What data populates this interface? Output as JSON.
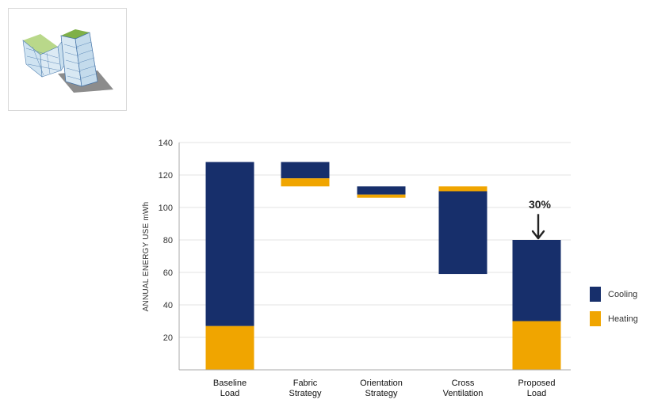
{
  "chart_data": {
    "type": "bar",
    "subtype": "stacked-waterfall",
    "title": "",
    "xlabel": "",
    "ylabel": "ANNUAL ENERGY USE mWh",
    "ylim": [
      0,
      140
    ],
    "yticks": [
      20,
      40,
      60,
      80,
      100,
      120,
      140
    ],
    "grid": true,
    "legend_position": "right",
    "categories": [
      "Baseline\nLoad",
      "Fabric\nStrategy",
      "Orientation\nStrategy",
      "Cross\nVentilation",
      "Proposed\nLoad"
    ],
    "series": [
      {
        "name": "Heating",
        "color": "#f0a500",
        "segments": [
          [
            0,
            27
          ],
          [
            113,
            118
          ],
          [
            106,
            108
          ],
          [
            110,
            113
          ],
          [
            0,
            30
          ]
        ]
      },
      {
        "name": "Cooling",
        "color": "#172f6b",
        "segments": [
          [
            27,
            128
          ],
          [
            118,
            128
          ],
          [
            108,
            113
          ],
          [
            59,
            110
          ],
          [
            30,
            80
          ]
        ]
      }
    ],
    "annotations": [
      {
        "text": "30%",
        "category_index": 4,
        "arrow_to": 80,
        "arrow_from": 94
      }
    ]
  },
  "colors": {
    "cooling": "#172f6b",
    "heating": "#f0a500",
    "grid": "#e3e3e3",
    "axis": "#aaaaaa"
  },
  "thumbnail": {
    "icon": "building-3d-model-icon"
  }
}
